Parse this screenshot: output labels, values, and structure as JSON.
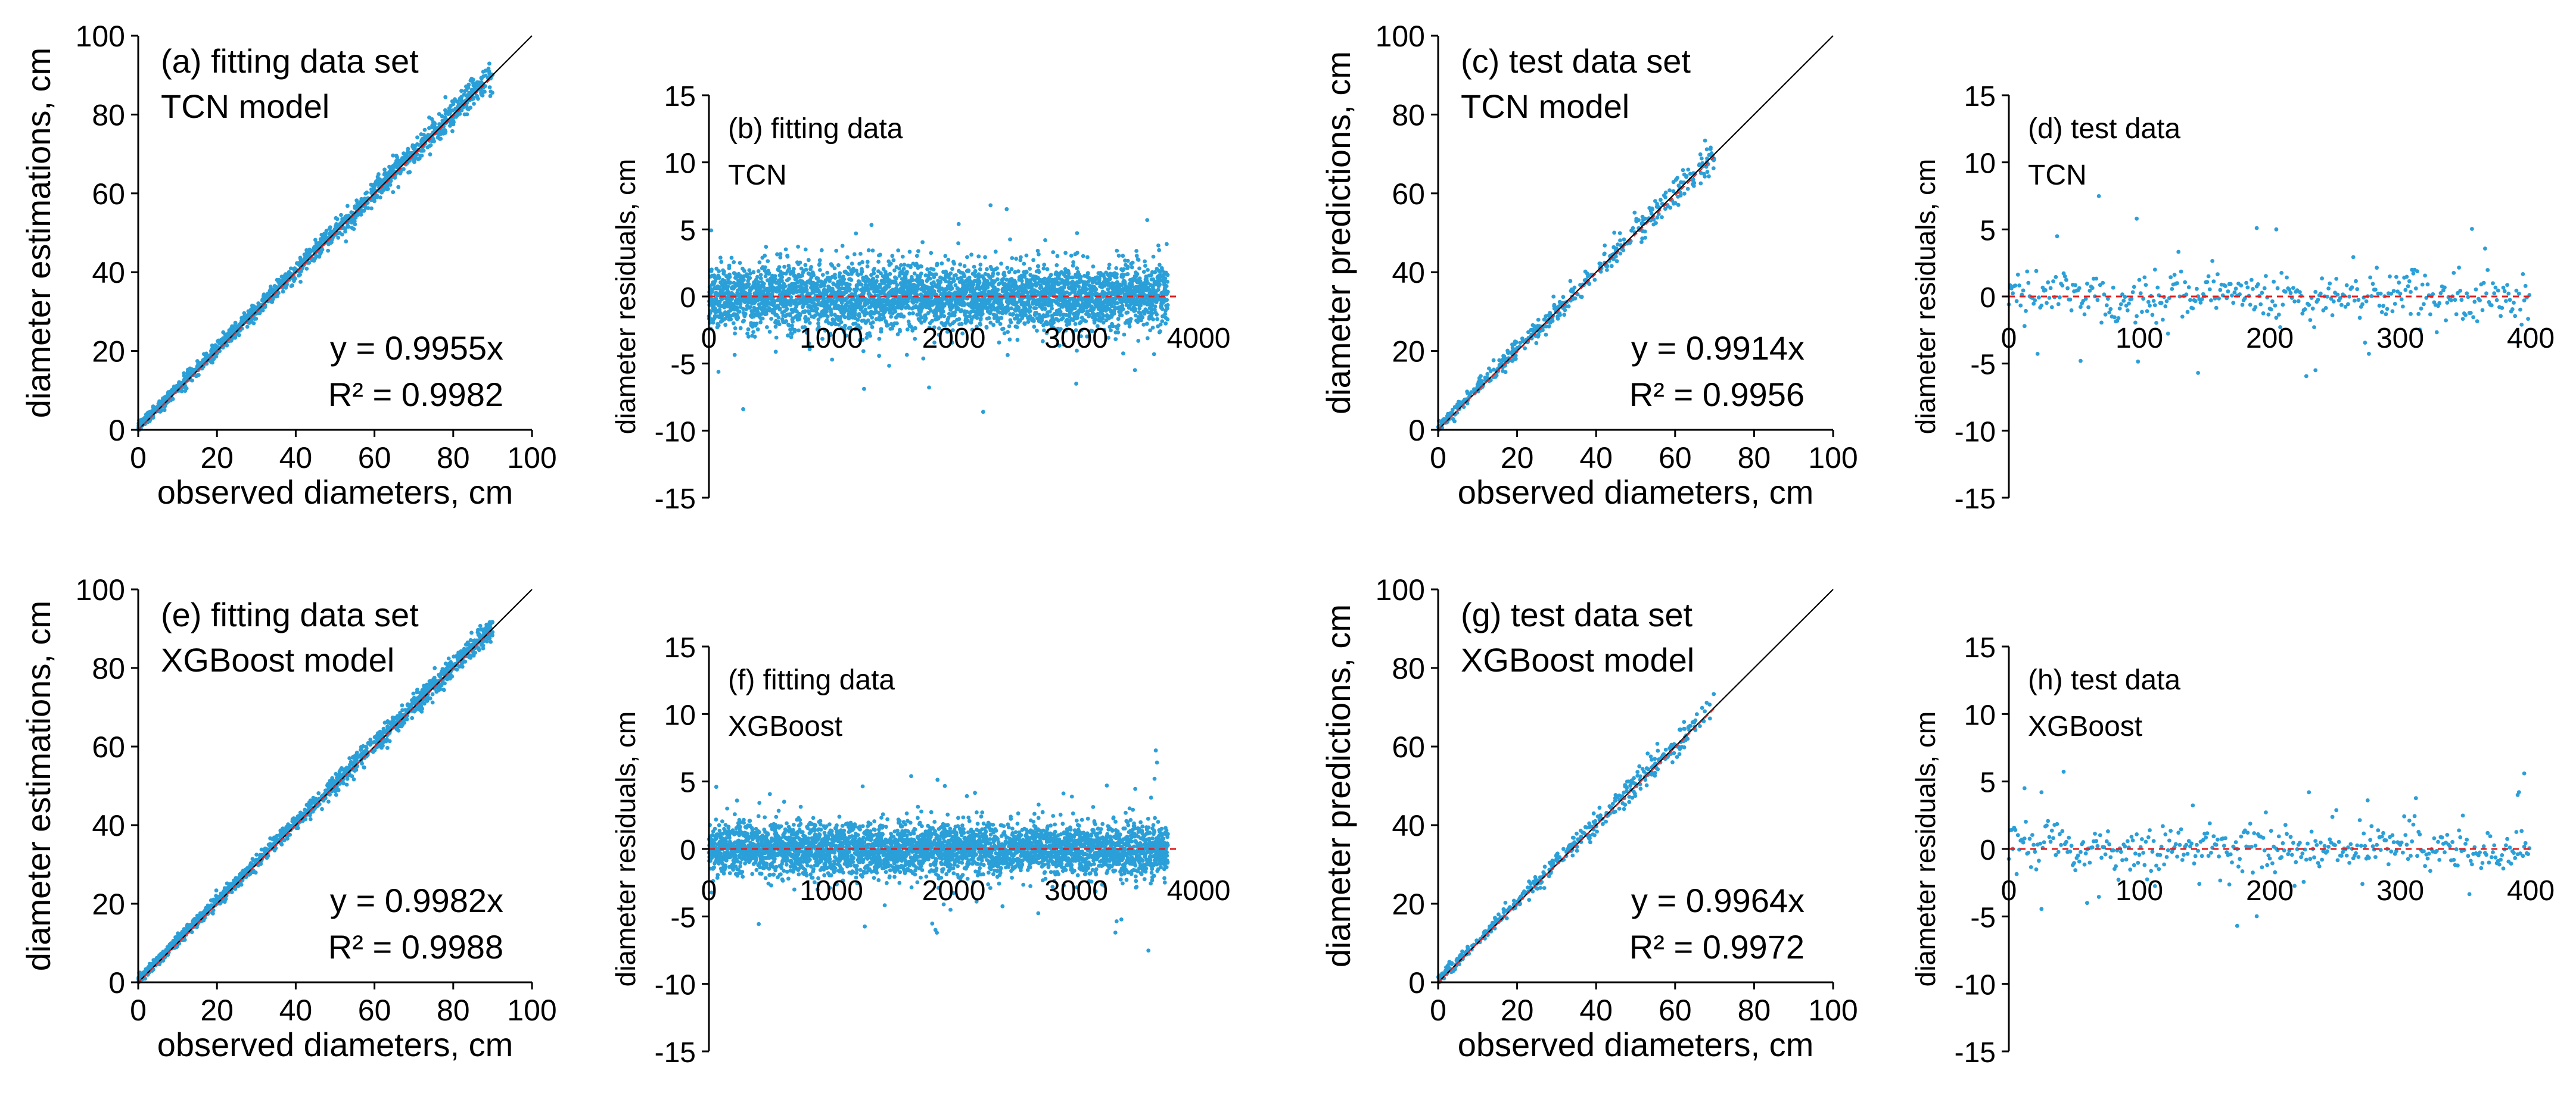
{
  "colors": {
    "points": "#2a9fd8",
    "reference": "#000000",
    "zero_line": "#e02020",
    "axes": "#000000"
  },
  "chart_data": [
    {
      "id": "a",
      "type": "scatter",
      "kind": "obs_vs_pred",
      "label1": "(a) fitting data set",
      "label2": "TCN model",
      "xlabel": "observed diameters, cm",
      "ylabel": "diameter estimations, cm",
      "xlim": [
        0,
        100
      ],
      "ylim": [
        0,
        100
      ],
      "xticks": [
        "0",
        "20",
        "40",
        "60",
        "80",
        "100"
      ],
      "yticks": [
        "0",
        "20",
        "40",
        "60",
        "80",
        "100"
      ],
      "equation": "y = 0.9955x",
      "r2": "R² = 0.9982",
      "slope": 0.9955,
      "data_max": 90,
      "n_points": 1400,
      "noise_sd": 1.3,
      "seed": 11
    },
    {
      "id": "b",
      "type": "scatter",
      "kind": "residual_dense",
      "label1": "(b) fitting data",
      "label2": "TCN",
      "xlabel": "",
      "ylabel": "diameter residuals, cm",
      "xlim": [
        0,
        4000
      ],
      "ylim": [
        -15,
        15
      ],
      "xticks": [
        "0",
        "1000",
        "2000",
        "3000",
        "4000"
      ],
      "yticks": [
        "-15",
        "-10",
        "-5",
        "0",
        "5",
        "10",
        "15"
      ],
      "n_points": 3750,
      "noise_sd": 1.2,
      "seed": 21,
      "outliers": [
        [
          2300,
          6.8
        ],
        [
          3580,
          5.7
        ],
        [
          2040,
          5.4
        ],
        [
          2240,
          -8.6
        ],
        [
          280,
          -8.4
        ],
        [
          3000,
          -6.5
        ]
      ]
    },
    {
      "id": "c",
      "type": "scatter",
      "kind": "obs_vs_pred",
      "label1": "(c) test data set",
      "label2": "TCN model",
      "xlabel": "observed diameters, cm",
      "ylabel": "diameter predictions, cm",
      "xlim": [
        0,
        100
      ],
      "ylim": [
        0,
        100
      ],
      "xticks": [
        "0",
        "20",
        "40",
        "60",
        "80",
        "100"
      ],
      "yticks": [
        "0",
        "20",
        "40",
        "60",
        "80",
        "100"
      ],
      "equation": "y = 0.9914x",
      "r2": "R² = 0.9956",
      "slope": 0.9914,
      "data_max": 70,
      "n_points": 420,
      "noise_sd": 1.6,
      "seed": 31
    },
    {
      "id": "d",
      "type": "scatter",
      "kind": "residual_sparse",
      "label1": "(d) test data",
      "label2": "TCN",
      "xlabel": "",
      "ylabel": "diameter residuals, cm",
      "xlim": [
        0,
        400
      ],
      "ylim": [
        -15,
        15
      ],
      "xticks": [
        "0",
        "100",
        "200",
        "300",
        "400"
      ],
      "yticks": [
        "-15",
        "-10",
        "-5",
        "0",
        "5",
        "10",
        "15"
      ],
      "n_points": 400,
      "noise_sd": 1.1,
      "seed": 41,
      "outliers": [
        [
          98,
          5.8
        ],
        [
          190,
          5.1
        ],
        [
          205,
          5.0
        ],
        [
          145,
          -5.7
        ],
        [
          235,
          -5.5
        ],
        [
          55,
          -4.8
        ],
        [
          308,
          -1.3
        ],
        [
          112,
          2.0
        ]
      ]
    },
    {
      "id": "e",
      "type": "scatter",
      "kind": "obs_vs_pred",
      "label1": "(e) fitting data set",
      "label2": "XGBoost model",
      "xlabel": "observed diameters, cm",
      "ylabel": "diameter estimations, cm",
      "xlim": [
        0,
        100
      ],
      "ylim": [
        0,
        100
      ],
      "xticks": [
        "0",
        "20",
        "40",
        "60",
        "80",
        "100"
      ],
      "yticks": [
        "0",
        "20",
        "40",
        "60",
        "80",
        "100"
      ],
      "equation": "y = 0.9982x",
      "r2": "R² = 0.9988",
      "slope": 0.9982,
      "data_max": 90,
      "n_points": 1400,
      "noise_sd": 1.1,
      "seed": 51
    },
    {
      "id": "f",
      "type": "scatter",
      "kind": "residual_dense",
      "label1": "(f) fitting data",
      "label2": "XGBoost",
      "xlabel": "",
      "ylabel": "diameter residuals, cm",
      "xlim": [
        0,
        4000
      ],
      "ylim": [
        -15,
        15
      ],
      "xticks": [
        "0",
        "1000",
        "2000",
        "3000",
        "4000"
      ],
      "yticks": [
        "-15",
        "-10",
        "-5",
        "0",
        "5",
        "10",
        "15"
      ],
      "n_points": 3750,
      "noise_sd": 0.95,
      "seed": 61,
      "outliers": [
        [
          3650,
          7.3
        ],
        [
          3660,
          6.4
        ],
        [
          3640,
          5.2
        ],
        [
          1850,
          -6.0
        ],
        [
          3320,
          -6.2
        ],
        [
          60,
          4.6
        ],
        [
          3250,
          4.7
        ]
      ]
    },
    {
      "id": "g",
      "type": "scatter",
      "kind": "obs_vs_pred",
      "label1": "(g) test data set",
      "label2": "XGBoost model",
      "xlabel": "observed diameters, cm",
      "ylabel": "diameter predictions, cm",
      "xlim": [
        0,
        100
      ],
      "ylim": [
        0,
        100
      ],
      "xticks": [
        "0",
        "20",
        "40",
        "60",
        "80",
        "100"
      ],
      "yticks": [
        "0",
        "20",
        "40",
        "60",
        "80",
        "100"
      ],
      "equation": "y = 0.9964x",
      "r2": "R² = 0.9972",
      "slope": 0.9964,
      "data_max": 70,
      "n_points": 420,
      "noise_sd": 1.3,
      "seed": 71
    },
    {
      "id": "h",
      "type": "scatter",
      "kind": "residual_sparse",
      "label1": "(h) test data",
      "label2": "XGBoost",
      "xlabel": "",
      "ylabel": "diameter residuals, cm",
      "xlim": [
        0,
        400
      ],
      "ylim": [
        -15,
        15
      ],
      "xticks": [
        "0",
        "100",
        "200",
        "300",
        "400"
      ],
      "yticks": [
        "-15",
        "-10",
        "-5",
        "0",
        "5",
        "10",
        "15"
      ],
      "n_points": 400,
      "noise_sd": 1.0,
      "seed": 81,
      "outliers": [
        [
          395,
          5.6
        ],
        [
          12,
          4.5
        ],
        [
          25,
          4.2
        ],
        [
          175,
          -5.7
        ],
        [
          390,
          4.0
        ],
        [
          60,
          -4.0
        ],
        [
          275,
          3.6
        ]
      ]
    }
  ]
}
